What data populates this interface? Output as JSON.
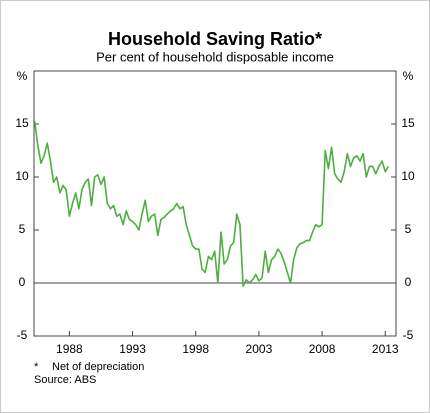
{
  "chart_data": {
    "type": "line",
    "title": "Household Saving Ratio*",
    "subtitle": "Per cent of household disposable income",
    "y_unit": "%",
    "footnote_marker": "*",
    "footnote": "Net of depreciation",
    "source": "Source: ABS",
    "xlim": [
      1985.2,
      2013.85
    ],
    "xticks": [
      1988,
      1993,
      1998,
      2003,
      2008,
      2013
    ],
    "ylim": [
      -5,
      20
    ],
    "yticks": [
      -5,
      0,
      5,
      10,
      15
    ],
    "grid": false,
    "zero_line": true,
    "x": [
      1985.25,
      1985.5,
      1985.75,
      1986,
      1986.25,
      1986.5,
      1986.75,
      1987,
      1987.25,
      1987.5,
      1987.75,
      1988,
      1988.25,
      1988.5,
      1988.75,
      1989,
      1989.25,
      1989.5,
      1989.75,
      1990,
      1990.25,
      1990.5,
      1990.75,
      1991,
      1991.25,
      1991.5,
      1991.75,
      1992,
      1992.25,
      1992.5,
      1992.75,
      1993,
      1993.25,
      1993.5,
      1993.75,
      1994,
      1994.25,
      1994.5,
      1994.75,
      1995,
      1995.25,
      1995.5,
      1995.75,
      1996,
      1996.25,
      1996.5,
      1996.75,
      1997,
      1997.25,
      1997.5,
      1997.75,
      1998,
      1998.25,
      1998.5,
      1998.75,
      1999,
      1999.25,
      1999.5,
      1999.75,
      2000,
      2000.25,
      2000.5,
      2000.75,
      2001,
      2001.25,
      2001.5,
      2001.75,
      2002,
      2002.25,
      2002.5,
      2002.75,
      2003,
      2003.25,
      2003.5,
      2003.75,
      2004,
      2004.25,
      2004.5,
      2004.75,
      2005,
      2005.25,
      2005.5,
      2005.75,
      2006,
      2006.25,
      2006.5,
      2006.75,
      2007,
      2007.25,
      2007.5,
      2007.75,
      2008,
      2008.25,
      2008.5,
      2008.75,
      2009,
      2009.25,
      2009.5,
      2009.75,
      2010,
      2010.25,
      2010.5,
      2010.75,
      2011,
      2011.25,
      2011.5,
      2011.75,
      2012,
      2012.25,
      2012.5,
      2012.75,
      2013,
      2013.25
    ],
    "series": [
      {
        "name": "Household saving ratio",
        "color": "#4caf3f",
        "values": [
          15.3,
          13,
          11.3,
          12,
          13.2,
          11.5,
          9.5,
          10,
          8.5,
          9.2,
          8.8,
          6.3,
          7.5,
          8.5,
          7,
          8.8,
          9.5,
          9.8,
          7.3,
          10,
          10.2,
          9.3,
          10,
          7.5,
          7,
          7.3,
          6.3,
          6.5,
          5.5,
          6.8,
          6,
          5.8,
          5.5,
          5,
          6.5,
          7.8,
          5.8,
          6.3,
          6.5,
          4.5,
          6,
          6.2,
          6.5,
          6.8,
          7,
          7.5,
          7,
          7.2,
          5.5,
          4.5,
          3.5,
          3.2,
          3.2,
          1.3,
          1,
          2.5,
          2.2,
          3,
          0,
          4.8,
          1.8,
          2.2,
          3.5,
          3.8,
          6.5,
          5.5,
          -0.3,
          0.3,
          0,
          0.3,
          0.8,
          0.2,
          0.5,
          3,
          1,
          2.2,
          2.5,
          3.2,
          2.8,
          2,
          1,
          0,
          2.2,
          3.3,
          3.7,
          3.8,
          4,
          4,
          4.8,
          5.5,
          5.3,
          5.5,
          12.5,
          10.8,
          12.8,
          10.3,
          9.8,
          9.5,
          10.5,
          12.2,
          11,
          11.8,
          12,
          11.5,
          12.2,
          10,
          11,
          11,
          10.3,
          11,
          11.5,
          10.5,
          11
        ]
      }
    ]
  }
}
